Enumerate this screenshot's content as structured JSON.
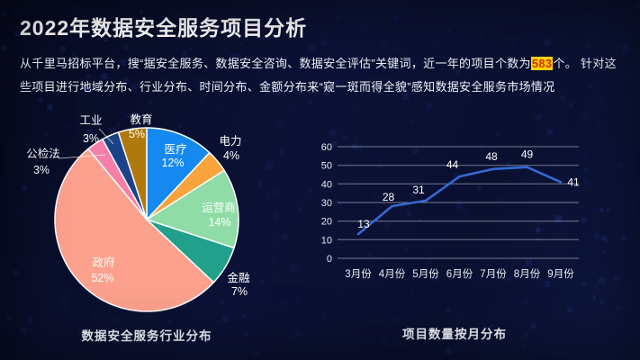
{
  "slide": {
    "title": "2022年数据安全服务项目分析",
    "intro": {
      "part1": "从千里马招标平台，搜“据安全服务、数据安全咨询、数据安全评估”关键词，近一年的项目个数为",
      "highlight": "583",
      "part2": "个。 针对这些项目进行地域分布、行业分布、时间分布、金额分布来“窥一斑而得全貌”感知数据安全服务市场情况"
    },
    "accent": {
      "highlight_bg": "#ffd400",
      "highlight_text": "#d33000",
      "background": "#0c1236"
    }
  },
  "chart_data": [
    {
      "type": "pie",
      "title": "数据安全服务行业分布",
      "categories": [
        "医疗",
        "电力",
        "运营商",
        "金融",
        "政府",
        "公检法",
        "工业",
        "教育"
      ],
      "values": [
        12,
        4,
        14,
        7,
        52,
        3,
        3,
        5
      ],
      "unit": "%",
      "colors": [
        "#1589f0",
        "#f9a33c",
        "#8fdca6",
        "#21a18c",
        "#fba18d",
        "#f57fa8",
        "#1a4388",
        "#b0790e"
      ],
      "start_angle_deg": 0,
      "direction": "clockwise",
      "label_color": "#ffffff",
      "slice_border_color": "#ffffff"
    },
    {
      "type": "line",
      "title": "项目数量按月分布",
      "categories": [
        "3月份",
        "4月份",
        "5月份",
        "6月份",
        "7月份",
        "8月份",
        "9月份"
      ],
      "values": [
        13,
        28,
        31,
        44,
        48,
        49,
        41
      ],
      "ylim": [
        0,
        60
      ],
      "ytick_step": 10,
      "yticks": [
        0,
        10,
        20,
        30,
        40,
        50,
        60
      ],
      "line_color": "#3568d4",
      "grid": true,
      "legend": "none"
    }
  ]
}
